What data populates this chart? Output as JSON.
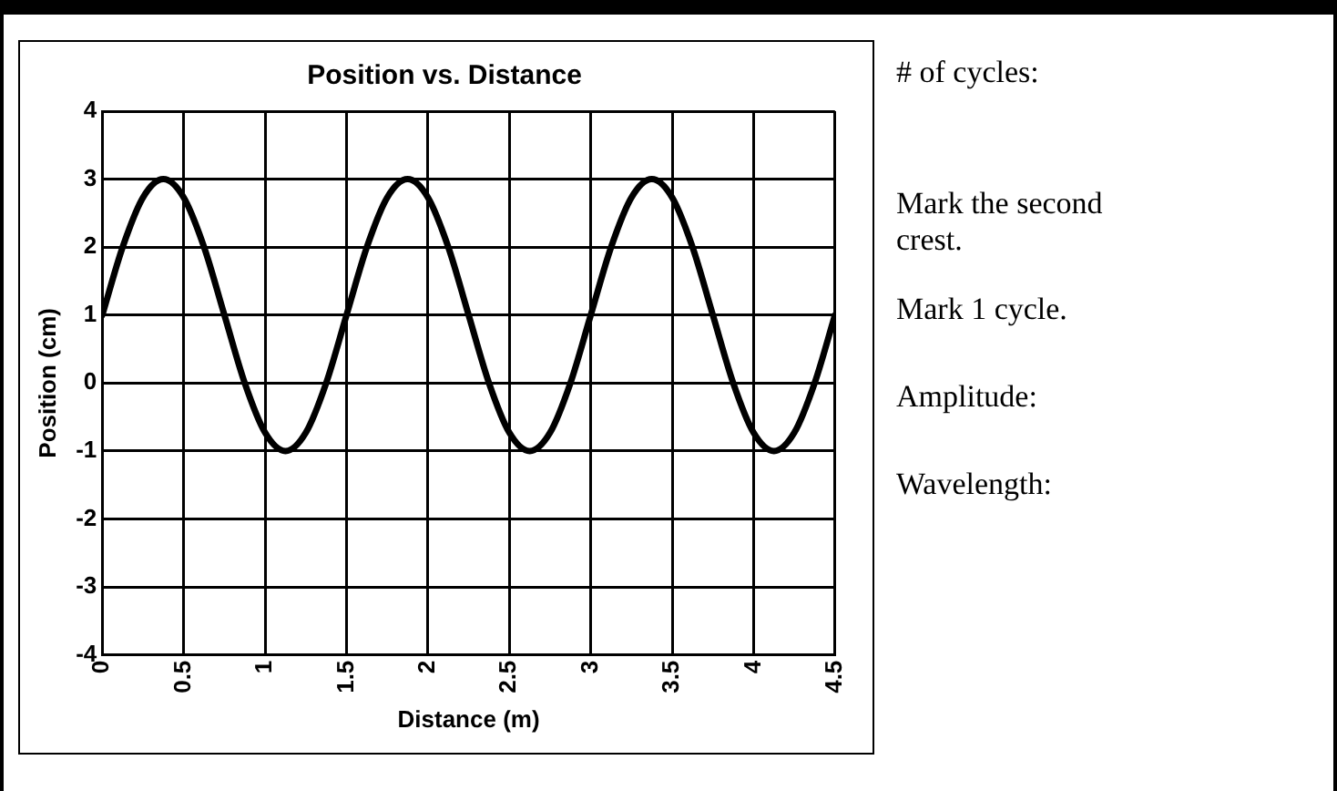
{
  "chart_data": {
    "type": "line",
    "title": "Position vs. Distance",
    "xlabel": "Distance (m)",
    "ylabel": "Position (cm)",
    "x": [
      0,
      0.125,
      0.25,
      0.375,
      0.5,
      0.625,
      0.75,
      0.875,
      1,
      1.125,
      1.25,
      1.375,
      1.5,
      1.625,
      1.75,
      1.875,
      2,
      2.125,
      2.25,
      2.375,
      2.5,
      2.625,
      2.75,
      2.875,
      3,
      3.125,
      3.25,
      3.375,
      3.5,
      3.625,
      3.75,
      3.875,
      4,
      4.125,
      4.25,
      4.375,
      4.5
    ],
    "series": [
      {
        "color": "#000000",
        "values": [
          1,
          2,
          2.73,
          3,
          2.73,
          2,
          1,
          0,
          -0.73,
          -1,
          -0.73,
          0,
          1,
          2,
          2.73,
          3,
          2.73,
          2,
          1,
          0,
          -0.73,
          -1,
          -0.73,
          0,
          1,
          2,
          2.73,
          3,
          2.73,
          2,
          1,
          0,
          -0.73,
          -1,
          -0.73,
          0,
          1
        ]
      }
    ],
    "xlim": [
      0,
      4.5
    ],
    "xticks": [
      0,
      0.5,
      1,
      1.5,
      2,
      2.5,
      3,
      3.5,
      4,
      4.5
    ],
    "ylim": [
      -4,
      4
    ],
    "yticks": [
      -4,
      -3,
      -2,
      -1,
      0,
      1,
      2,
      3,
      4
    ],
    "grid": true,
    "legend": false,
    "marker": "none",
    "line_style": "solid",
    "annotations": [
      "# of cycles:",
      "Mark the second crest.",
      "Mark 1 cycle.",
      "Amplitude:",
      "Wavelength:"
    ]
  }
}
